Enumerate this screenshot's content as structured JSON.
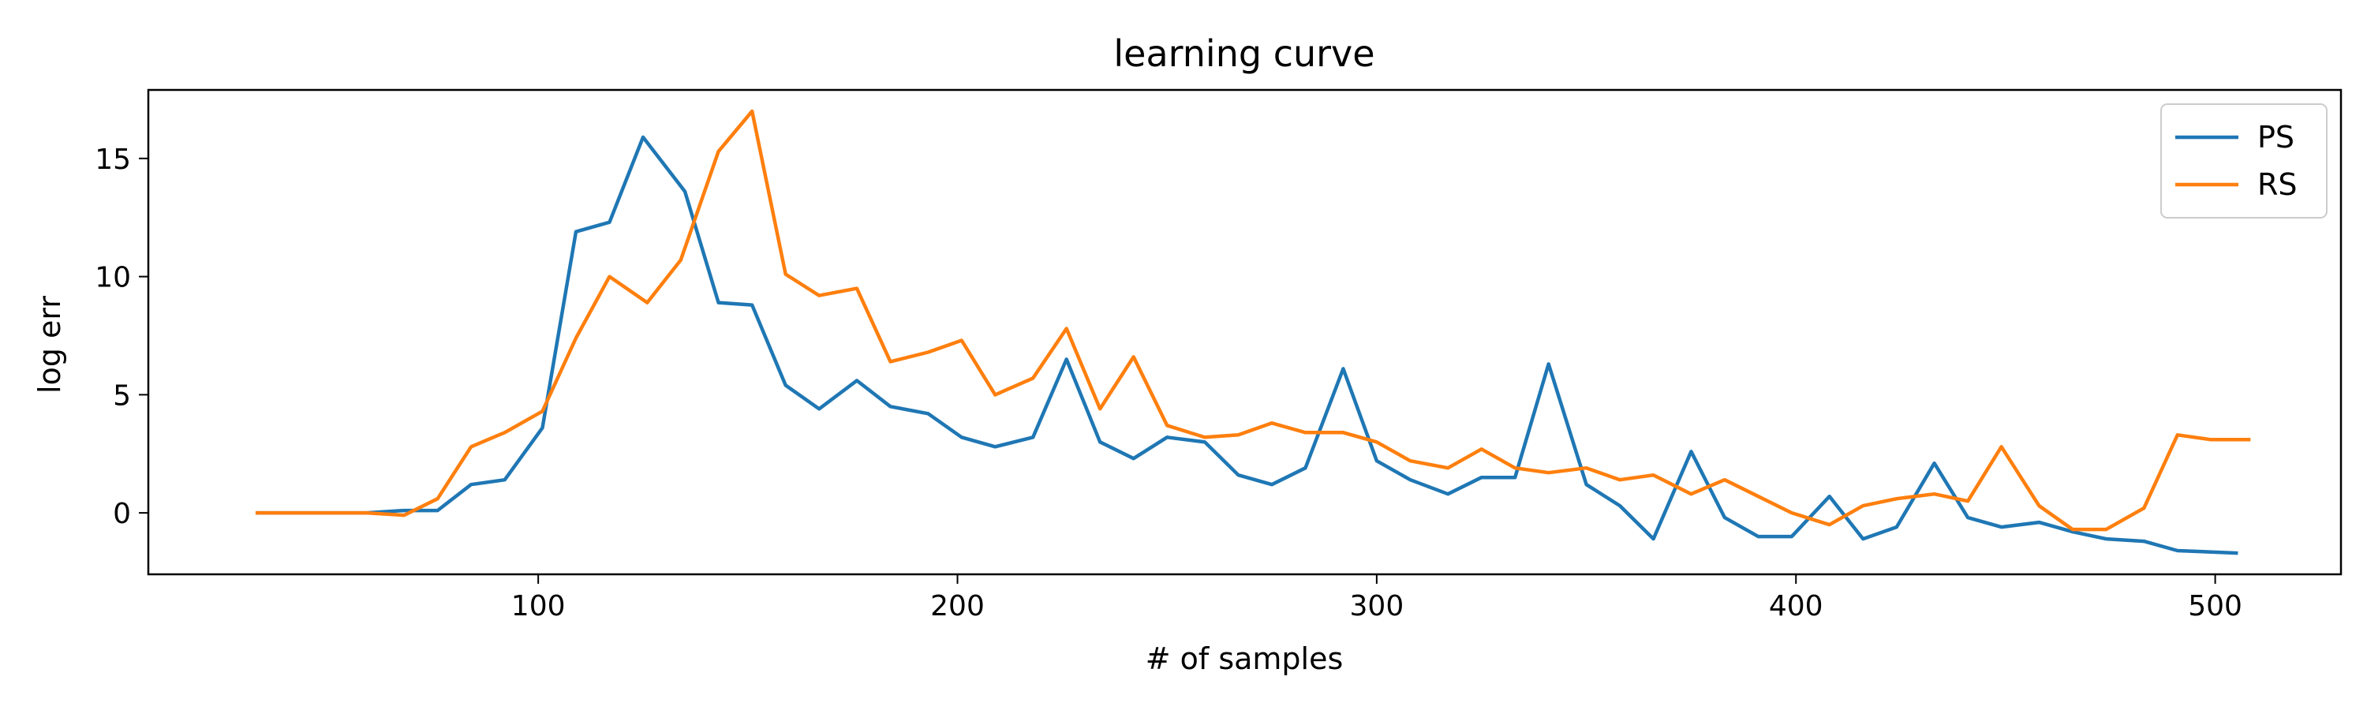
{
  "chart_data": {
    "type": "line",
    "title": "learning curve",
    "xlabel": "# of samples",
    "ylabel": "log err",
    "xlim": [
      7,
      530
    ],
    "ylim": [
      -2.6,
      17.9
    ],
    "xticks": [
      100,
      200,
      300,
      400,
      500
    ],
    "yticks": [
      0,
      5,
      10,
      15
    ],
    "grid": false,
    "legend_position": "top-right",
    "series": [
      {
        "name": "PS",
        "color": "#1f77b4",
        "x": [
          33,
          59,
          68,
          76,
          84,
          92,
          101,
          109,
          117,
          125,
          135,
          143,
          151,
          159,
          167,
          176,
          184,
          193,
          201,
          209,
          218,
          226,
          234,
          242,
          250,
          259,
          267,
          275,
          283,
          292,
          300,
          308,
          317,
          325,
          333,
          341,
          350,
          358,
          366,
          375,
          383,
          391,
          399,
          408,
          416,
          424,
          433,
          441,
          449,
          458,
          466,
          474,
          483,
          491,
          505
        ],
        "y": [
          0.0,
          0.0,
          0.1,
          0.1,
          1.2,
          1.4,
          3.6,
          11.9,
          12.3,
          15.9,
          13.6,
          8.9,
          8.8,
          5.4,
          4.4,
          5.6,
          4.5,
          4.2,
          3.2,
          2.8,
          3.2,
          6.5,
          3.0,
          2.3,
          3.2,
          3.0,
          1.6,
          1.2,
          1.9,
          6.1,
          2.2,
          1.4,
          0.8,
          1.5,
          1.5,
          6.3,
          1.2,
          0.3,
          -1.1,
          2.6,
          -0.2,
          -1.0,
          -1.0,
          0.7,
          -1.1,
          -0.6,
          2.1,
          -0.2,
          -0.6,
          -0.4,
          -0.8,
          -1.1,
          -1.2,
          -1.6,
          -1.7
        ]
      },
      {
        "name": "RS",
        "color": "#ff7f0e",
        "x": [
          33,
          59,
          68,
          76,
          84,
          92,
          101,
          109,
          117,
          126,
          134,
          143,
          151,
          159,
          167,
          176,
          184,
          193,
          201,
          209,
          218,
          226,
          234,
          242,
          250,
          259,
          267,
          275,
          283,
          292,
          300,
          308,
          317,
          325,
          333,
          341,
          350,
          358,
          366,
          375,
          383,
          391,
          399,
          408,
          416,
          424,
          433,
          441,
          449,
          458,
          466,
          474,
          483,
          491,
          499,
          508
        ],
        "y": [
          0.0,
          0.0,
          -0.1,
          0.6,
          2.8,
          3.4,
          4.3,
          7.4,
          10.0,
          8.9,
          10.7,
          15.3,
          17.0,
          10.1,
          9.2,
          9.5,
          6.4,
          6.8,
          7.3,
          5.0,
          5.7,
          7.8,
          4.4,
          6.6,
          3.7,
          3.2,
          3.3,
          3.8,
          3.4,
          3.4,
          3.0,
          2.2,
          1.9,
          2.7,
          1.9,
          1.7,
          1.9,
          1.4,
          1.6,
          0.8,
          1.4,
          0.7,
          0.0,
          -0.5,
          0.3,
          0.6,
          0.8,
          0.5,
          2.8,
          0.3,
          -0.7,
          -0.7,
          0.2,
          3.3,
          3.1,
          3.1
        ]
      }
    ]
  }
}
